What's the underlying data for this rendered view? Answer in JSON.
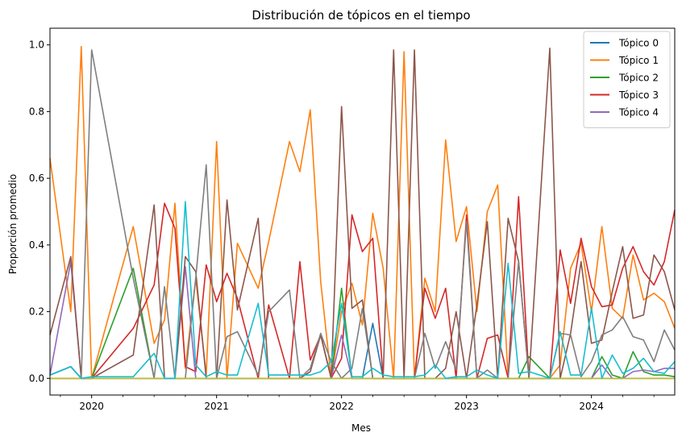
{
  "chart_data": {
    "type": "line",
    "title": "Distribución de tópicos en el tiempo",
    "xlabel": "Mes",
    "ylabel": "Proporción promedio",
    "xlim": [
      "2019-09",
      "2024-09"
    ],
    "ylim": [
      -0.05,
      1.05
    ],
    "yticks": [
      0.0,
      0.2,
      0.4,
      0.6,
      0.8,
      1.0
    ],
    "ytick_labels": [
      "0.0",
      "0.2",
      "0.4",
      "0.6",
      "0.8",
      "1.0"
    ],
    "xticks": [
      "2020-01",
      "2021-01",
      "2022-01",
      "2023-01",
      "2024-01"
    ],
    "xtick_labels": [
      "2020",
      "2021",
      "2022",
      "2023",
      "2024"
    ],
    "grid": false,
    "legend_position": "top-right",
    "x": [
      "2019-09",
      "2019-11",
      "2019-12",
      "2020-01",
      "2020-05",
      "2020-07",
      "2020-08",
      "2020-09",
      "2020-10",
      "2020-11",
      "2020-12",
      "2021-01",
      "2021-02",
      "2021-03",
      "2021-05",
      "2021-06",
      "2021-08",
      "2021-09",
      "2021-10",
      "2021-11",
      "2021-12",
      "2022-01",
      "2022-02",
      "2022-03",
      "2022-04",
      "2022-05",
      "2022-06",
      "2022-07",
      "2022-08",
      "2022-09",
      "2022-10",
      "2022-11",
      "2022-12",
      "2023-01",
      "2023-02",
      "2023-03",
      "2023-04",
      "2023-05",
      "2023-06",
      "2023-07",
      "2023-09",
      "2023-10",
      "2023-11",
      "2023-12",
      "2024-01",
      "2024-02",
      "2024-03",
      "2024-04",
      "2024-05",
      "2024-06",
      "2024-07",
      "2024-08",
      "2024-09"
    ],
    "series": [
      {
        "name": "Tópico 0",
        "color": "#1f77b4",
        "values": [
          0.01,
          0.035,
          0.0,
          0.0,
          0.0,
          0.0,
          0.0,
          0.0,
          0.0,
          0.0,
          0.0,
          0.0,
          0.0,
          0.0,
          0.0,
          0.0,
          0.0,
          0.0,
          0.0,
          0.0,
          0.0,
          0.0,
          0.0,
          0.0,
          0.165,
          0.0,
          0.0,
          0.0,
          0.0,
          0.0,
          0.0,
          0.0,
          0.0,
          0.0,
          0.0,
          0.0,
          0.0,
          0.0,
          0.0,
          0.0,
          0.0,
          0.0,
          0.0,
          0.0,
          0.0,
          0.0,
          0.0,
          0.0,
          0.0,
          0.0,
          0.0,
          0.0,
          0.0
        ]
      },
      {
        "name": "Tópico 1",
        "color": "#ff7f0e",
        "values": [
          0.66,
          0.2,
          0.995,
          0.0,
          0.455,
          0.105,
          0.175,
          0.525,
          0.03,
          0.3,
          0.01,
          0.71,
          0.0,
          0.405,
          0.27,
          0.41,
          0.71,
          0.62,
          0.805,
          0.29,
          0.0,
          0.2,
          0.285,
          0.16,
          0.495,
          0.33,
          0.0,
          0.98,
          0.0,
          0.3,
          0.2,
          0.715,
          0.41,
          0.515,
          0.2,
          0.5,
          0.58,
          0.0,
          0.0,
          0.0,
          0.0,
          0.04,
          0.33,
          0.405,
          0.2,
          0.455,
          0.21,
          0.18,
          0.37,
          0.235,
          0.255,
          0.23,
          0.15
        ]
      },
      {
        "name": "Tópico 2",
        "color": "#2ca02c",
        "values": [
          0.0,
          0.0,
          0.0,
          0.0,
          0.33,
          0.0,
          0.0,
          0.0,
          0.0,
          0.0,
          0.0,
          0.0,
          0.0,
          0.0,
          0.0,
          0.0,
          0.0,
          0.0,
          0.0,
          0.0,
          0.0,
          0.27,
          0.0,
          0.0,
          0.0,
          0.0,
          0.0,
          0.0,
          0.0,
          0.0,
          0.0,
          0.0,
          0.0,
          0.0,
          0.0,
          0.0,
          0.0,
          0.0,
          0.0,
          0.065,
          0.0,
          0.0,
          0.0,
          0.0,
          0.0,
          0.065,
          0.01,
          0.0,
          0.08,
          0.02,
          0.01,
          0.01,
          0.005
        ]
      },
      {
        "name": "Tópico 3",
        "color": "#d62728",
        "values": [
          0.0,
          0.0,
          0.0,
          0.0,
          0.15,
          0.28,
          0.525,
          0.45,
          0.035,
          0.02,
          0.34,
          0.23,
          0.315,
          0.24,
          0.0,
          0.22,
          0.0,
          0.35,
          0.055,
          0.13,
          0.0,
          0.06,
          0.49,
          0.38,
          0.42,
          0.0,
          0.0,
          0.0,
          0.0,
          0.27,
          0.18,
          0.27,
          0.0,
          0.49,
          0.0,
          0.12,
          0.13,
          0.0,
          0.545,
          0.0,
          0.0,
          0.385,
          0.225,
          0.42,
          0.275,
          0.215,
          0.22,
          0.33,
          0.395,
          0.32,
          0.28,
          0.35,
          0.505
        ]
      },
      {
        "name": "Tópico 4",
        "color": "#9467bd",
        "values": [
          0.01,
          0.35,
          0.0,
          0.0,
          0.0,
          0.0,
          0.0,
          0.0,
          0.335,
          0.0,
          0.0,
          0.0,
          0.0,
          0.0,
          0.0,
          0.0,
          0.0,
          0.0,
          0.0,
          0.0,
          0.0,
          0.13,
          0.0,
          0.0,
          0.0,
          0.0,
          0.0,
          0.0,
          0.0,
          0.0,
          0.0,
          0.0,
          0.0,
          0.0,
          0.0,
          0.0,
          0.0,
          0.0,
          0.0,
          0.0,
          0.0,
          0.0,
          0.0,
          0.0,
          0.0,
          0.04,
          0.0,
          0.0,
          0.02,
          0.025,
          0.02,
          0.03,
          0.03
        ]
      },
      {
        "name": "",
        "color": "#8c564b",
        "values": [
          0.13,
          0.365,
          0.0,
          0.0,
          0.07,
          0.52,
          0.0,
          0.0,
          0.365,
          0.32,
          0.0,
          0.0,
          0.535,
          0.205,
          0.48,
          0.0,
          0.0,
          0.0,
          0.02,
          0.13,
          0.0,
          0.815,
          0.21,
          0.235,
          0.0,
          0.0,
          0.985,
          0.0,
          0.985,
          0.0,
          0.0,
          0.03,
          0.2,
          0.0,
          0.22,
          0.47,
          0.0,
          0.48,
          0.35,
          0.0,
          0.99,
          0.0,
          0.135,
          0.35,
          0.105,
          0.115,
          0.26,
          0.395,
          0.18,
          0.19,
          0.37,
          0.32,
          0.205
        ]
      },
      {
        "name": "",
        "color": "#e377c2",
        "values": [
          0.0,
          0.0,
          0.0,
          0.0,
          0.0,
          0.0,
          0.0,
          0.0,
          0.0,
          0.0,
          0.0,
          0.0,
          0.0,
          0.0,
          0.0,
          0.0,
          0.0,
          0.0,
          0.0,
          0.0,
          0.0,
          0.0,
          0.0,
          0.0,
          0.0,
          0.0,
          0.0,
          0.0,
          0.0,
          0.0,
          0.0,
          0.0,
          0.0,
          0.0,
          0.0,
          0.0,
          0.0,
          0.0,
          0.0,
          0.0,
          0.0,
          0.0,
          0.0,
          0.0,
          0.0,
          0.0,
          0.0,
          0.0,
          0.0,
          0.0,
          0.0,
          0.0,
          0.0
        ]
      },
      {
        "name": "",
        "color": "#7f7f7f",
        "values": [
          0.01,
          0.035,
          0.0,
          0.985,
          0.3,
          0.0,
          0.275,
          0.0,
          0.0,
          0.3,
          0.64,
          0.0,
          0.125,
          0.14,
          0.01,
          0.2,
          0.265,
          0.0,
          0.03,
          0.135,
          0.05,
          0.0,
          0.03,
          0.21,
          0.0,
          0.0,
          0.0,
          0.0,
          0.0,
          0.135,
          0.03,
          0.11,
          0.025,
          0.47,
          0.0,
          0.025,
          0.0,
          0.0,
          0.35,
          0.0,
          0.0,
          0.135,
          0.13,
          0.005,
          0.05,
          0.13,
          0.145,
          0.185,
          0.125,
          0.115,
          0.05,
          0.145,
          0.085
        ]
      },
      {
        "name": "",
        "color": "#bcbd22",
        "values": [
          0.0,
          0.0,
          0.0,
          0.0,
          0.0,
          0.0,
          0.0,
          0.0,
          0.0,
          0.0,
          0.0,
          0.0,
          0.0,
          0.0,
          0.0,
          0.0,
          0.0,
          0.0,
          0.0,
          0.0,
          0.0,
          0.0,
          0.0,
          0.0,
          0.0,
          0.0,
          0.0,
          0.0,
          0.0,
          0.0,
          0.0,
          0.0,
          0.0,
          0.0,
          0.0,
          0.0,
          0.0,
          0.0,
          0.0,
          0.0,
          0.0,
          0.0,
          0.0,
          0.0,
          0.0,
          0.0,
          0.0,
          0.0,
          0.0,
          0.0,
          0.0,
          0.0,
          0.0
        ]
      },
      {
        "name": "",
        "color": "#17becf",
        "values": [
          0.01,
          0.035,
          0.0,
          0.005,
          0.005,
          0.075,
          0.0,
          0.0,
          0.53,
          0.04,
          0.005,
          0.02,
          0.01,
          0.01,
          0.225,
          0.01,
          0.01,
          0.01,
          0.01,
          0.02,
          0.05,
          0.225,
          0.005,
          0.005,
          0.03,
          0.01,
          0.005,
          0.005,
          0.005,
          0.01,
          0.04,
          0.0,
          0.005,
          0.005,
          0.025,
          0.01,
          0.0,
          0.345,
          0.015,
          0.02,
          0.0,
          0.14,
          0.01,
          0.01,
          0.21,
          0.0,
          0.07,
          0.015,
          0.03,
          0.06,
          0.02,
          0.015,
          0.05
        ]
      }
    ]
  }
}
